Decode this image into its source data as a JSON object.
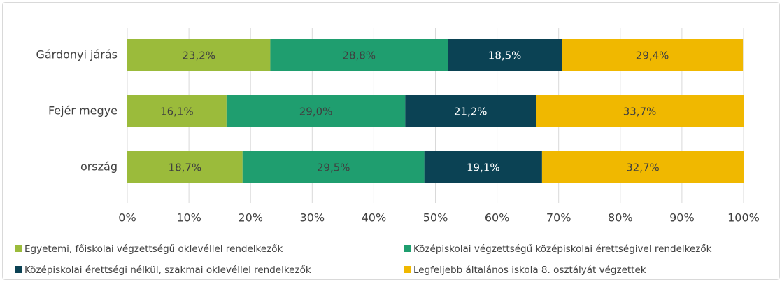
{
  "chart_data": {
    "type": "stacked-bar-horizontal",
    "categories": [
      "Gárdonyi járás",
      "Fejér megye",
      "ország"
    ],
    "series": [
      {
        "name": "Egyetemi, főiskolai végzettségű oklevéllel rendelkezők",
        "color": "#9bbb3b",
        "values": [
          23.2,
          16.1,
          18.7
        ],
        "value_labels": [
          "23,2%",
          "16,1%",
          "18,7%"
        ]
      },
      {
        "name": "Középiskolai végzettségű középiskolai érettségivel rendelkezők",
        "color": "#1f9e6f",
        "values": [
          28.8,
          29.0,
          29.5
        ],
        "value_labels": [
          "28,8%",
          "29,0%",
          "29,5%"
        ]
      },
      {
        "name": "Középiskolai érettségi nélkül, szakmai oklevéllel rendelkezők",
        "color": "#0b4254",
        "values": [
          18.5,
          21.2,
          19.1
        ],
        "value_labels": [
          "18,5%",
          "21,2%",
          "19,1%"
        ]
      },
      {
        "name": "Legfeljebb általános iskola 8. osztályát végzettek",
        "color": "#f0b800",
        "values": [
          29.4,
          33.7,
          32.7
        ],
        "value_labels": [
          "29,4%",
          "33,7%",
          "32,7%"
        ]
      }
    ],
    "xlim": [
      0,
      100
    ],
    "xticks": [
      {
        "value": 0,
        "label": "0%"
      },
      {
        "value": 10,
        "label": "10%"
      },
      {
        "value": 20,
        "label": "20%"
      },
      {
        "value": 30,
        "label": "30%"
      },
      {
        "value": 40,
        "label": "40%"
      },
      {
        "value": 50,
        "label": "50%"
      },
      {
        "value": 60,
        "label": "60%"
      },
      {
        "value": 70,
        "label": "70%"
      },
      {
        "value": 80,
        "label": "80%"
      },
      {
        "value": 90,
        "label": "90%"
      },
      {
        "value": 100,
        "label": "100%"
      }
    ],
    "grid": true,
    "legend": "bottom"
  }
}
